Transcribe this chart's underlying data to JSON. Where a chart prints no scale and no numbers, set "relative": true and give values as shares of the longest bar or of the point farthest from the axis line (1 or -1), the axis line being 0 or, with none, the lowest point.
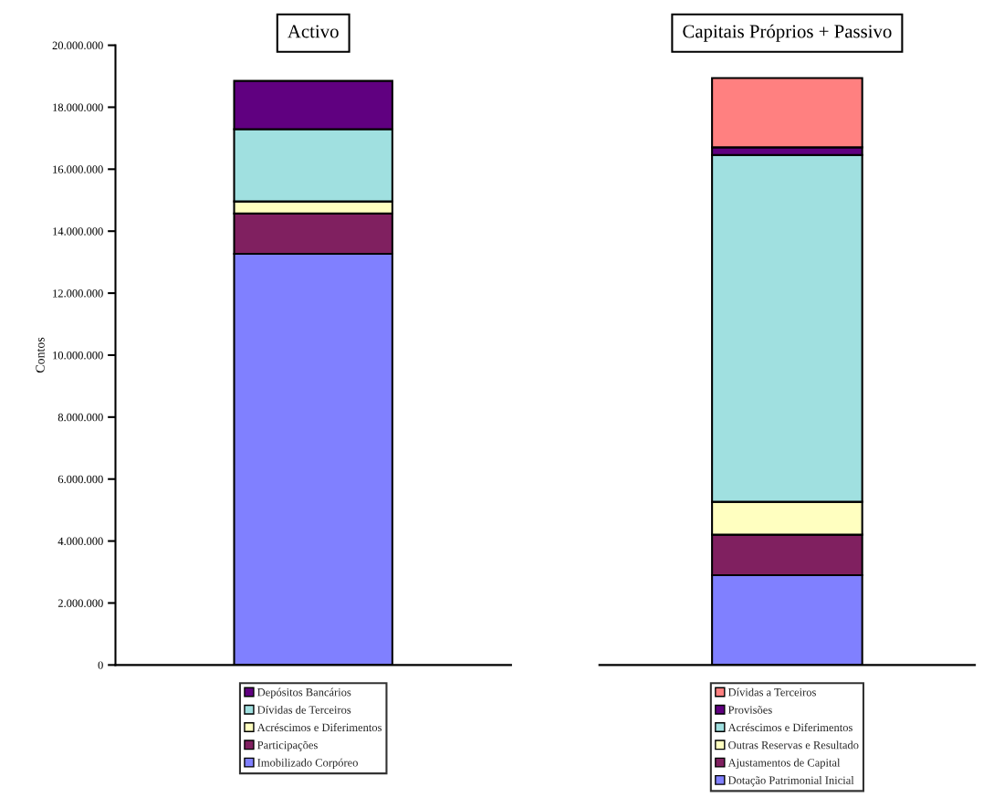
{
  "chart_data": [
    {
      "type": "bar",
      "title": "Activo",
      "ylabel": "Contos",
      "stacked": true,
      "categories": [
        null
      ],
      "legend": "bottom",
      "tick_labels": "y",
      "ylim": [
        0,
        20000000
      ],
      "yticks": [
        0,
        {
          "value": 2000000,
          "label": "2.000.000"
        },
        {
          "value": 4000000,
          "label": "4.000.000"
        },
        {
          "value": 6000000,
          "label": "6.000.000"
        },
        {
          "value": 8000000,
          "label": "8.000.000"
        },
        {
          "value": 10000000,
          "label": "10.000.000"
        },
        {
          "value": 12000000,
          "label": "12.000.000"
        },
        {
          "value": 14000000,
          "label": "14.000.000"
        },
        {
          "value": 16000000,
          "label": "16.000.000"
        },
        {
          "value": 18000000,
          "label": "18.000.000"
        },
        {
          "value": 20000000,
          "label": "20.000.000"
        }
      ],
      "series": [
        {
          "name": "Imobilizado Corpóreo",
          "color": "#8080ff",
          "values": [
            13270000
          ]
        },
        {
          "name": "Participações",
          "color": "#802060",
          "values": [
            1300000
          ]
        },
        {
          "name": "Acréscimos e Diferimentos",
          "color": "#ffffc0",
          "values": [
            390000
          ]
        },
        {
          "name": "Dívidas de Terceiros",
          "color": "#a0e0e0",
          "values": [
            2330000
          ]
        },
        {
          "name": "Depósitos Bancários",
          "color": "#600080",
          "values": [
            1560000
          ]
        }
      ]
    },
    {
      "type": "bar",
      "title": "Capitais Próprios + Passivo",
      "stacked": true,
      "relative": true,
      "categories": [
        null
      ],
      "legend": "bottom",
      "tick_labels": false,
      "series": [
        {
          "name": "Dotação Patrimonial Inicial",
          "color": "#8080ff",
          "values": [
            0.153
          ]
        },
        {
          "name": "Ajustamentos de Capital",
          "color": "#802060",
          "values": [
            0.069
          ]
        },
        {
          "name": "Outras Reservas e Resultado",
          "color": "#ffffc0",
          "values": [
            0.056
          ]
        },
        {
          "name": "Acréscimos e Diferimentos",
          "color": "#a0e0e0",
          "values": [
            0.591
          ]
        },
        {
          "name": "Provisões",
          "color": "#600080",
          "values": [
            0.013
          ]
        },
        {
          "name": "Dívidas a Terceiros",
          "color": "#ff8080",
          "values": [
            0.118
          ]
        }
      ]
    }
  ]
}
